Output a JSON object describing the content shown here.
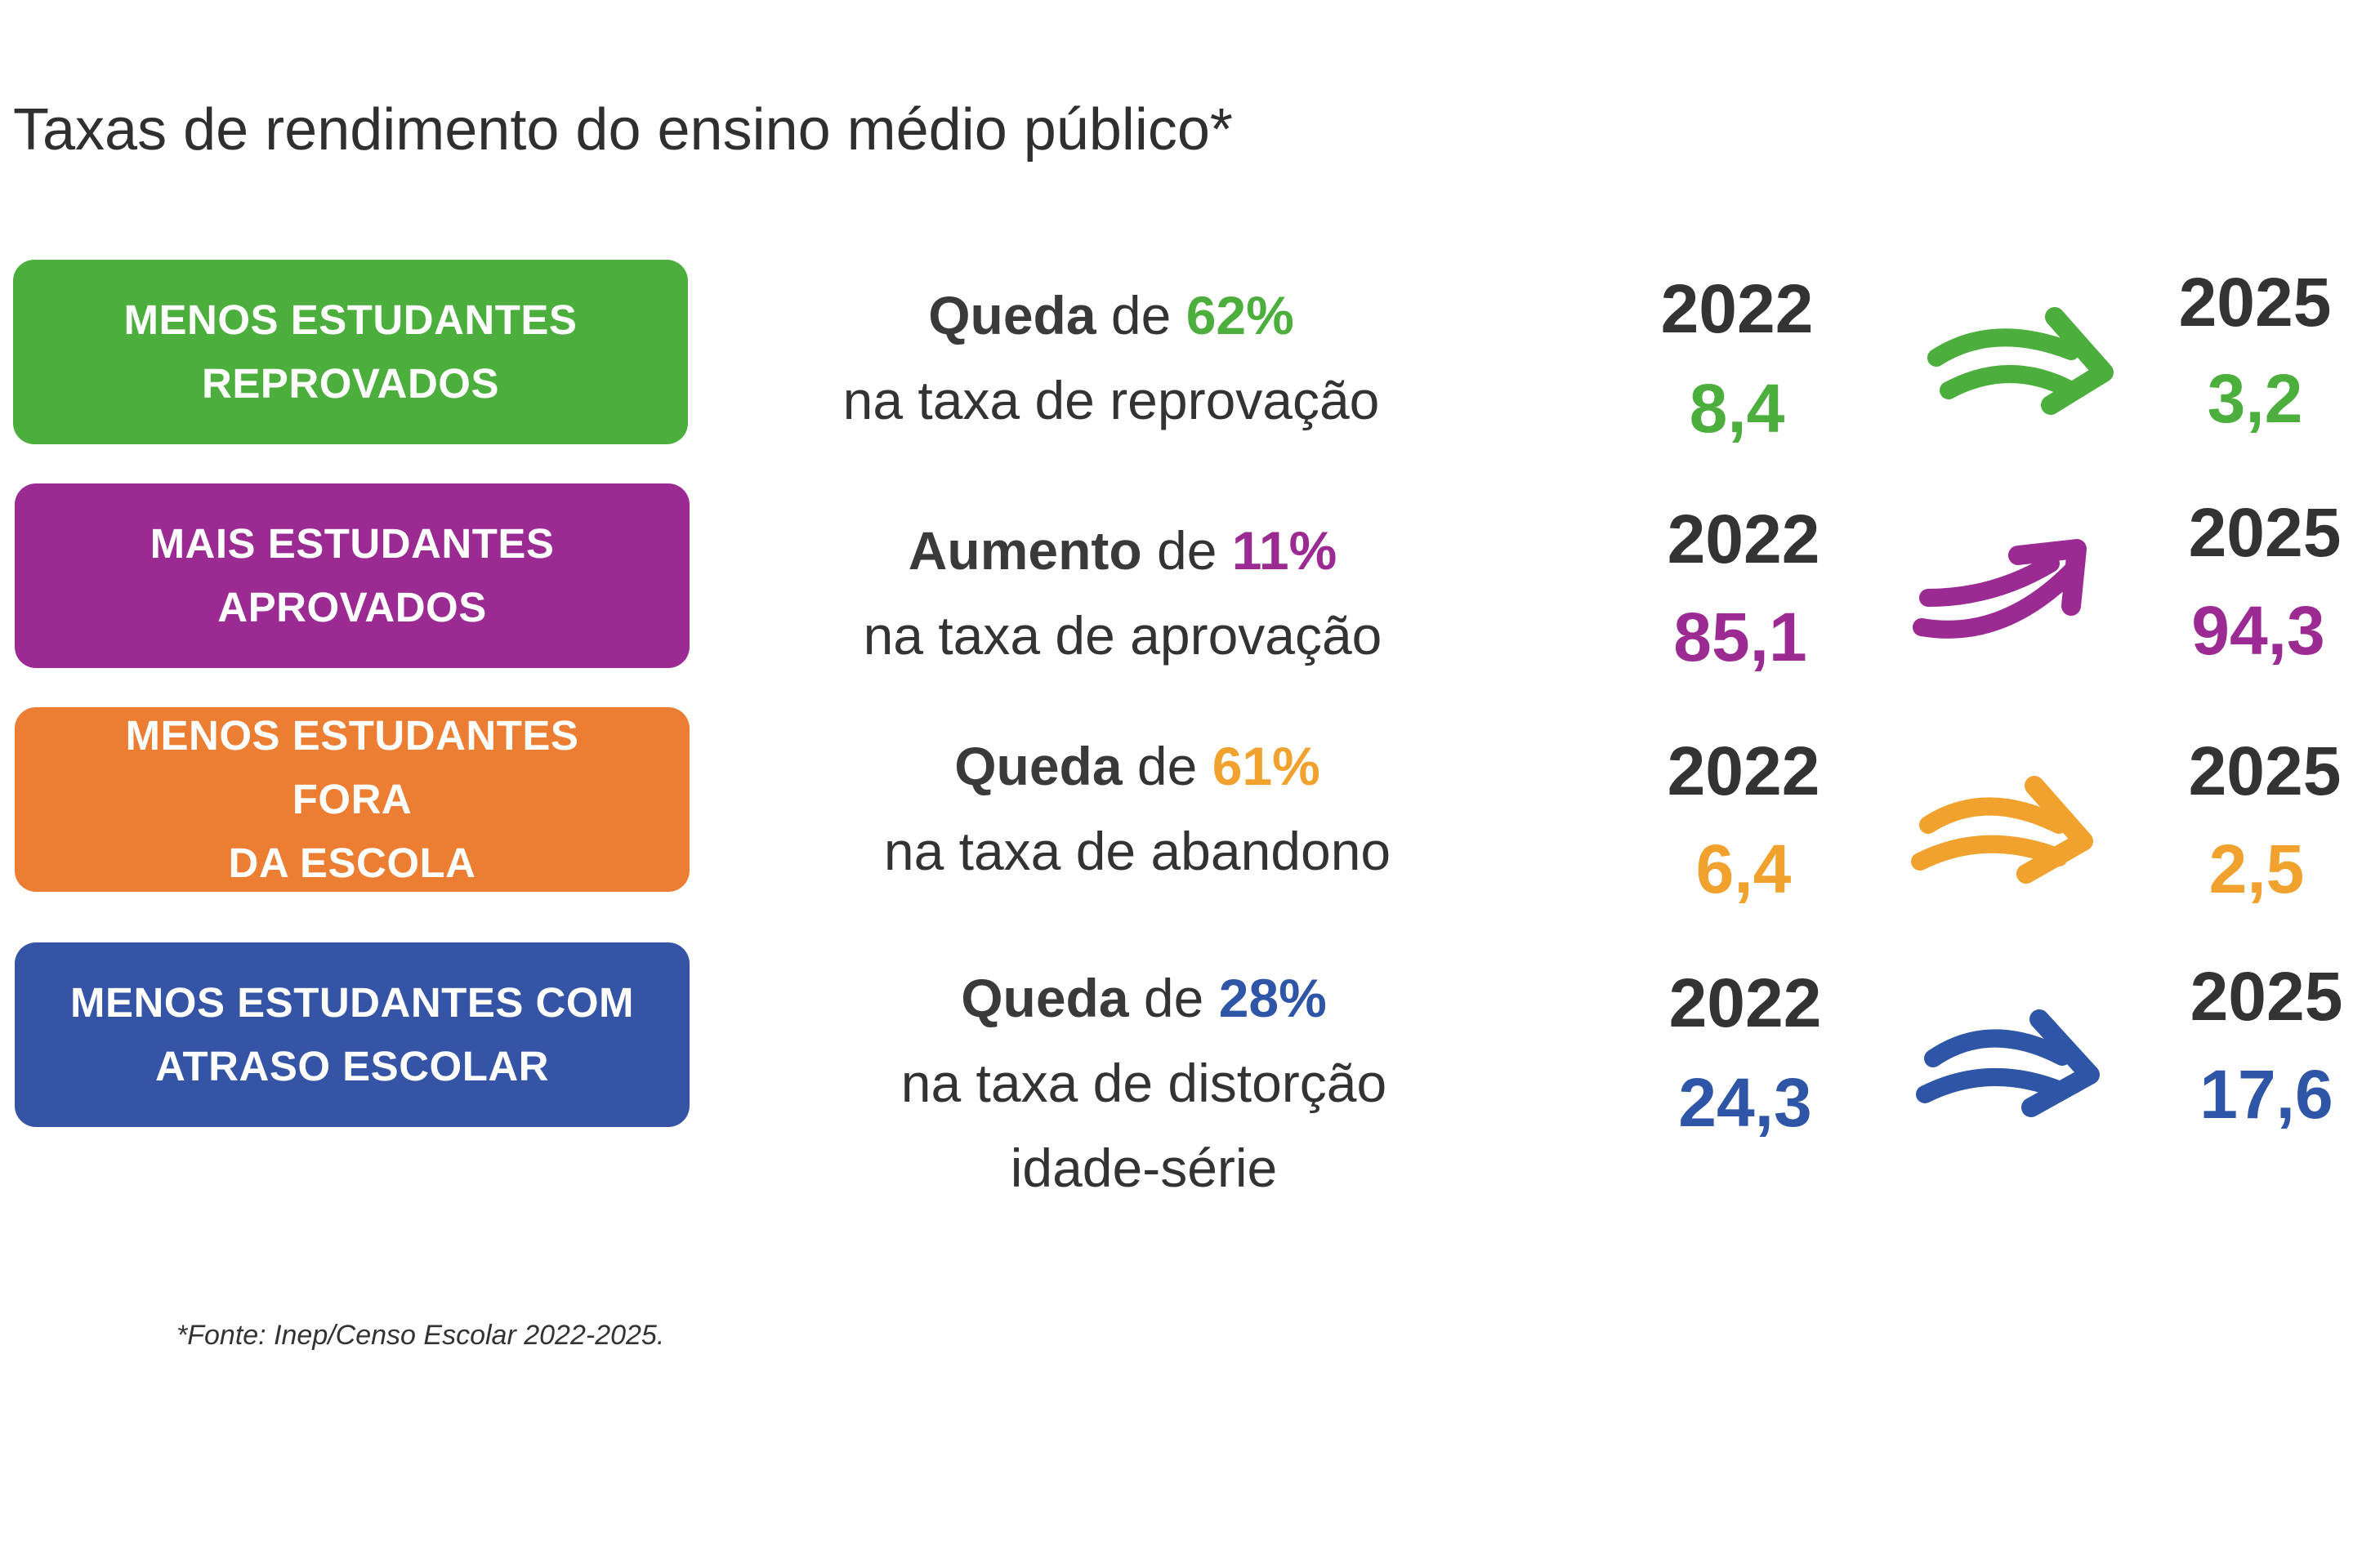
{
  "title": "Taxas de rendimento do ensino médio público*",
  "rows": [
    {
      "label_line1": "MENOS ESTUDANTES",
      "label_line2": "REPROVADOS",
      "verb": "Queda",
      "connector": " de ",
      "percent": "62%",
      "desc_line2": "na taxa de reprovação",
      "desc_line3": "",
      "year_from": "2022",
      "value_from": "8,4",
      "year_to": "2025",
      "value_to": "3,2",
      "color": "#4cae3c",
      "arrow_icon": "arrow-right-down-icon"
    },
    {
      "label_line1": "MAIS ESTUDANTES",
      "label_line2": "APROVADOS",
      "verb": "Aumento",
      "connector": " de ",
      "percent": "11%",
      "desc_line2": "na taxa de aprovação",
      "desc_line3": "",
      "year_from": "2022",
      "value_from": "85,1",
      "year_to": "2025",
      "value_to": "94,3",
      "color": "#9b2a92",
      "arrow_icon": "arrow-up-right-icon"
    },
    {
      "label_line1": "MENOS ESTUDANTES FORA",
      "label_line2": "DA ESCOLA",
      "verb": "Queda",
      "connector": " de ",
      "percent": "61%",
      "desc_line2": "na taxa de abandono",
      "desc_line3": "",
      "year_from": "2022",
      "value_from": "6,4",
      "year_to": "2025",
      "value_to": "2,5",
      "color": "#f0a12e",
      "box_color": "#ec7e33",
      "arrow_icon": "arrow-right-down-icon"
    },
    {
      "label_line1": "MENOS ESTUDANTES COM",
      "label_line2": "ATRASO ESCOLAR",
      "verb": "Queda",
      "connector": " de ",
      "percent": "28%",
      "desc_line2": "na taxa de distorção",
      "desc_line3": "idade-série",
      "year_from": "2022",
      "value_from": "24,3",
      "year_to": "2025",
      "value_to": "17,6",
      "color": "#2f56a6",
      "box_color": "#3554a5",
      "arrow_icon": "arrow-right-down-icon"
    }
  ],
  "footnote": "*Fonte: Inep/Censo Escolar 2022-2025."
}
